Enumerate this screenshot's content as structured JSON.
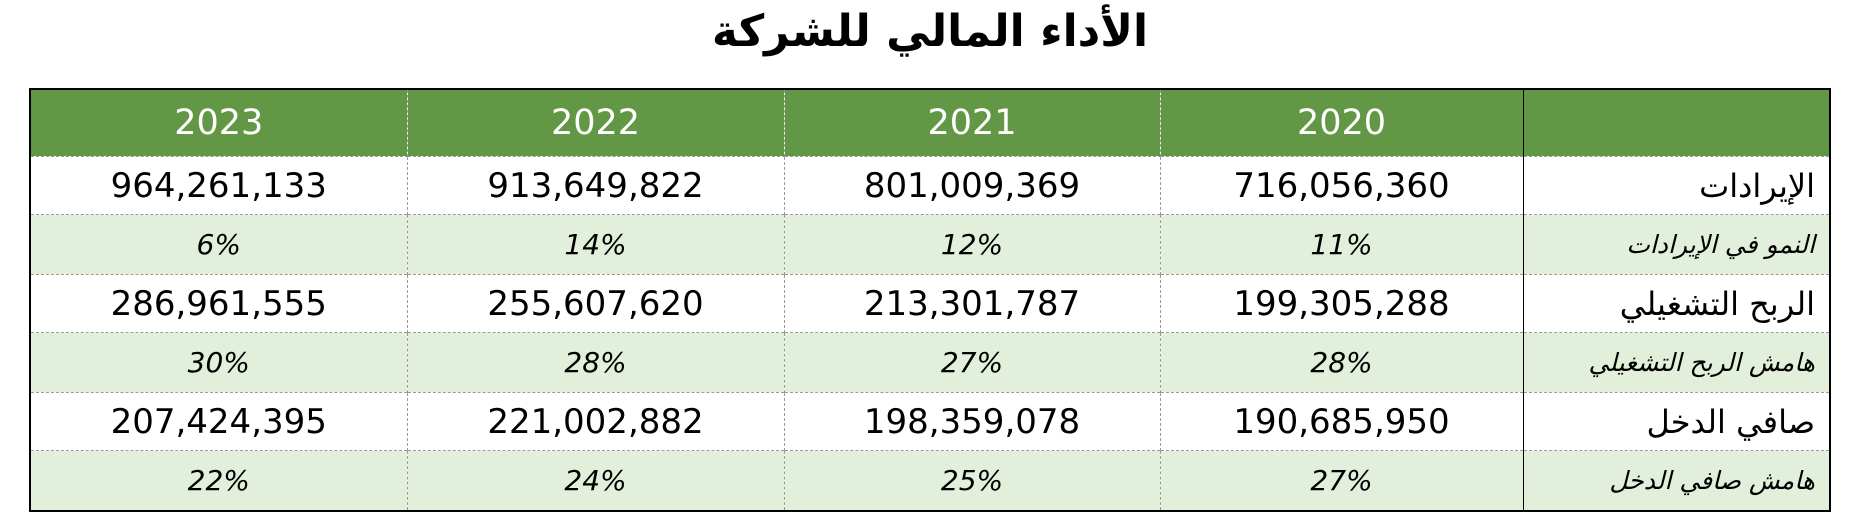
{
  "title": "الأداء المالي للشركة",
  "years": [
    "2023",
    "2022",
    "2021",
    "2020"
  ],
  "rows": [
    {
      "label": "الإيرادات",
      "values": [
        "964,261,133",
        "913,649,822",
        "801,009,369",
        "716,056,360"
      ]
    },
    {
      "label": "النمو في الإيرادات",
      "values": [
        "6%",
        "14%",
        "12%",
        "11%"
      ]
    },
    {
      "label": "الربح التشغيلي",
      "values": [
        "286,961,555",
        "255,607,620",
        "213,301,787",
        "199,305,288"
      ]
    },
    {
      "label": "هامش الربح التشغيلي",
      "values": [
        "30%",
        "28%",
        "27%",
        "28%"
      ]
    },
    {
      "label": "صافي الدخل",
      "values": [
        "207,424,395",
        "221,002,882",
        "198,359,078",
        "190,685,950"
      ]
    },
    {
      "label": "هامش صافي الدخل",
      "values": [
        "22%",
        "24%",
        "25%",
        "27%"
      ]
    }
  ],
  "colors": {
    "header_bg": "#629845",
    "sub_row_bg": "#e2efda",
    "header_text": "#ffffff"
  }
}
